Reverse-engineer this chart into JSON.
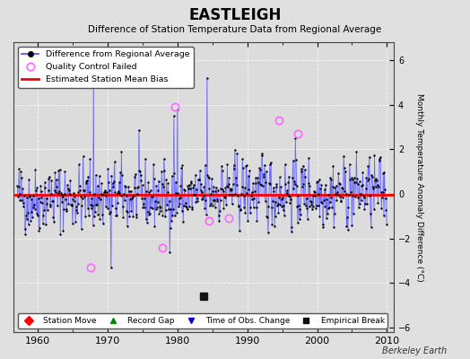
{
  "title": "EASTLEIGH",
  "subtitle": "Difference of Station Temperature Data from Regional Average",
  "ylabel": "Monthly Temperature Anomaly Difference (°C)",
  "xlabel_years": [
    1960,
    1970,
    1980,
    1990,
    2000,
    2010
  ],
  "xlim": [
    1956.5,
    2011
  ],
  "ylim": [
    -6.2,
    6.8
  ],
  "yticks": [
    -6,
    -4,
    -2,
    0,
    2,
    4,
    6
  ],
  "background_color": "#e0e0e0",
  "plot_bg_color": "#dcdcdc",
  "line_color": "#4444ff",
  "line_fill_color": "#aaaaff",
  "dot_color": "#000000",
  "bias_color": "#ff0000",
  "bias_value": -0.05,
  "qc_fail_color": "#ff66ff",
  "station_move_color": "#ff0000",
  "record_gap_color": "#008800",
  "time_obs_color": "#0000cc",
  "empirical_break_color": "#111111",
  "watermark": "Berkeley Earth",
  "seed": 42,
  "years_start": 1957,
  "years_end": 2010,
  "spike1_year": 1968.0,
  "spike1_val": 5.5,
  "spike2_year": 1970.5,
  "spike2_val": -3.3,
  "spike3_year": 1979.5,
  "spike3_val": 3.5,
  "spike4_year": 1980.0,
  "spike4_val": 3.8,
  "spike5_year": 1984.2,
  "spike5_val": 5.2,
  "qc_fails": [
    {
      "year": 1967.5,
      "val": -3.3
    },
    {
      "year": 1977.8,
      "val": -2.4
    },
    {
      "year": 1979.6,
      "val": 3.9
    },
    {
      "year": 1984.5,
      "val": -1.2
    },
    {
      "year": 1987.3,
      "val": -1.1
    },
    {
      "year": 1994.5,
      "val": 3.3
    },
    {
      "year": 1997.2,
      "val": 2.7
    }
  ],
  "time_obs_year": 1984.5,
  "empirical_break_year": 1983.8,
  "empirical_break_val": -4.6
}
